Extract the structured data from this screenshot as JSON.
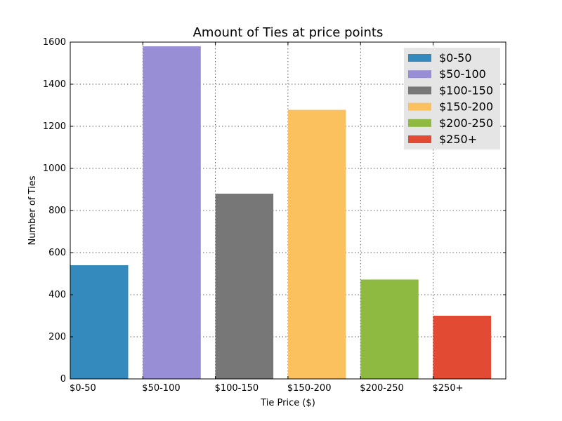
{
  "chart_data": {
    "type": "bar",
    "title": "Amount of Ties at price points",
    "xlabel": "Tie Price ($)",
    "ylabel": "Number of Ties",
    "categories": [
      "$0-50",
      "$50-100",
      "$100-150",
      "$150-200",
      "$200-250",
      "$250+"
    ],
    "values": [
      540,
      1580,
      880,
      1278,
      472,
      300
    ],
    "colors": [
      "#348ABD",
      "#988ED5",
      "#777777",
      "#FBC15E",
      "#8EBA42",
      "#E24A33"
    ],
    "ylim": [
      0,
      1600
    ],
    "yticks": [
      0,
      200,
      400,
      600,
      800,
      1000,
      1200,
      1400,
      1600
    ],
    "grid": true,
    "legend": {
      "placement": "top-right",
      "background": "#E5E5E5",
      "entries": [
        "$0-50",
        "$50-100",
        "$100-150",
        "$150-200",
        "$200-250",
        "$250+"
      ]
    }
  }
}
